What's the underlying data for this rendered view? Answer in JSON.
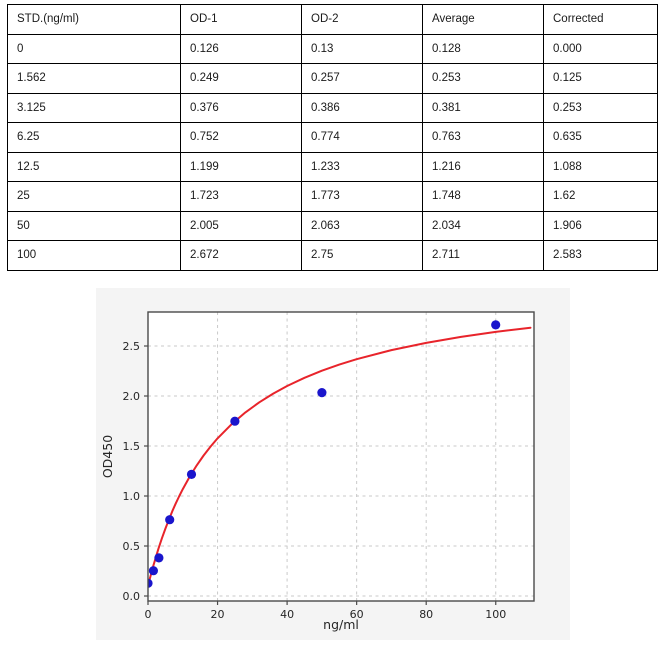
{
  "table": {
    "headers": [
      "STD.(ng/ml)",
      "OD-1",
      "OD-2",
      "Average",
      "Corrected"
    ],
    "rows": [
      [
        "0",
        "0.126",
        "0.13",
        "0.128",
        "0.000"
      ],
      [
        "1.562",
        "0.249",
        "0.257",
        "0.253",
        "0.125"
      ],
      [
        "3.125",
        "0.376",
        "0.386",
        "0.381",
        "0.253"
      ],
      [
        "6.25",
        "0.752",
        "0.774",
        "0.763",
        "0.635"
      ],
      [
        "12.5",
        "1.199",
        "1.233",
        "1.216",
        "1.088"
      ],
      [
        "25",
        "1.723",
        "1.773",
        "1.748",
        "1.62"
      ],
      [
        "50",
        "2.005",
        "2.063",
        "2.034",
        "1.906"
      ],
      [
        "100",
        "2.672",
        "2.75",
        "2.711",
        "2.583"
      ]
    ]
  },
  "chart_data": {
    "type": "scatter",
    "title": "",
    "xlabel": "ng/ml",
    "ylabel": "OD450",
    "xlim": [
      0,
      111
    ],
    "ylim": [
      -0.05,
      2.84
    ],
    "x_ticks": [
      0,
      20,
      40,
      60,
      80,
      100
    ],
    "x_tick_labels": [
      "0",
      "20",
      "40",
      "60",
      "80",
      "100"
    ],
    "y_ticks": [
      0.0,
      0.5,
      1.0,
      1.5,
      2.0,
      2.5
    ],
    "y_tick_labels": [
      "0.0",
      "0.5",
      "1.0",
      "1.5",
      "2.0",
      "2.5"
    ],
    "grid": "dashed",
    "legend": "none",
    "series": [
      {
        "name": "standard-points",
        "type": "scatter",
        "color": "#1a15cc",
        "x": [
          0,
          1.562,
          3.125,
          6.25,
          12.5,
          25,
          50,
          100
        ],
        "y": [
          0.128,
          0.253,
          0.381,
          0.763,
          1.216,
          1.748,
          2.034,
          2.711
        ]
      },
      {
        "name": "fit-curve",
        "type": "line",
        "color": "#e8242b",
        "points": [
          [
            0,
            0.1
          ],
          [
            0.5,
            0.169
          ],
          [
            1,
            0.235
          ],
          [
            1.5,
            0.298
          ],
          [
            2,
            0.358
          ],
          [
            3,
            0.472
          ],
          [
            4,
            0.577
          ],
          [
            5,
            0.674
          ],
          [
            6,
            0.764
          ],
          [
            7,
            0.848
          ],
          [
            8,
            0.927
          ],
          [
            9,
            1.0
          ],
          [
            10,
            1.069
          ],
          [
            12,
            1.194
          ],
          [
            14,
            1.306
          ],
          [
            16,
            1.405
          ],
          [
            18,
            1.495
          ],
          [
            20,
            1.576
          ],
          [
            24,
            1.717
          ],
          [
            28,
            1.836
          ],
          [
            32,
            1.937
          ],
          [
            36,
            2.024
          ],
          [
            40,
            2.1
          ],
          [
            45,
            2.182
          ],
          [
            50,
            2.253
          ],
          [
            55,
            2.314
          ],
          [
            60,
            2.368
          ],
          [
            70,
            2.459
          ],
          [
            80,
            2.531
          ],
          [
            90,
            2.591
          ],
          [
            100,
            2.641
          ],
          [
            110,
            2.683
          ]
        ]
      }
    ],
    "colors": {
      "figure_background": "#f4f4f4",
      "axes_background": "#ffffff",
      "grid": "#c9c9c9",
      "spine": "#4a4a4a",
      "marker": "#1a15cc",
      "curve": "#e8242b"
    }
  }
}
